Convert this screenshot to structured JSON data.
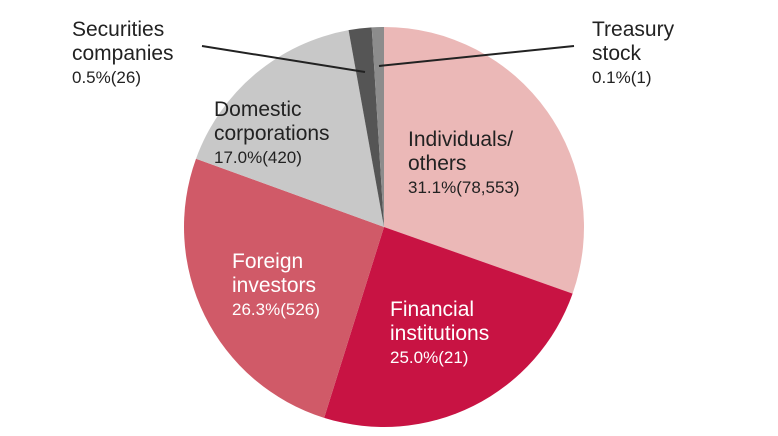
{
  "chart_data": {
    "type": "pie",
    "title": "",
    "start_angle_deg": 0,
    "direction": "clockwise",
    "slices": [
      {
        "name": "Individuals/ others",
        "percent": 31.1,
        "count": "78,553",
        "value_label": "31.1%(78,553)",
        "color": "#ebb8b7"
      },
      {
        "name": "Financial institutions",
        "percent": 25.0,
        "count": "21",
        "value_label": "25.0%(21)",
        "color": "#c81343"
      },
      {
        "name": "Foreign investors",
        "percent": 26.3,
        "count": "526",
        "value_label": "26.3%(526)",
        "color": "#d05a68"
      },
      {
        "name": "Domestic corporations",
        "percent": 17.0,
        "count": "420",
        "value_label": "17.0%(420)",
        "color": "#c8c8c8"
      },
      {
        "name": "Securities companies",
        "percent": 0.5,
        "count": "26",
        "value_label": "0.5%(26)",
        "color": "#555555"
      },
      {
        "name": "Treasury stock",
        "percent": 0.1,
        "count": "1",
        "value_label": "0.1%(1)",
        "color": "#8c8c8c"
      }
    ]
  },
  "labels": {
    "individuals": {
      "name": "Individuals/\nothers",
      "value": "31.1%(78,553)"
    },
    "financial": {
      "name": "Financial\ninstitutions",
      "value": "25.0%(21)"
    },
    "foreign": {
      "name": "Foreign\ninvestors",
      "value": "26.3%(526)"
    },
    "domestic": {
      "name": "Domestic\ncorporations",
      "value": "17.0%(420)"
    },
    "securities": {
      "name": "Securities\ncompanies",
      "value": "0.5%(26)"
    },
    "treasury": {
      "name": "Treasury\nstock",
      "value": "0.1%(1)"
    }
  }
}
